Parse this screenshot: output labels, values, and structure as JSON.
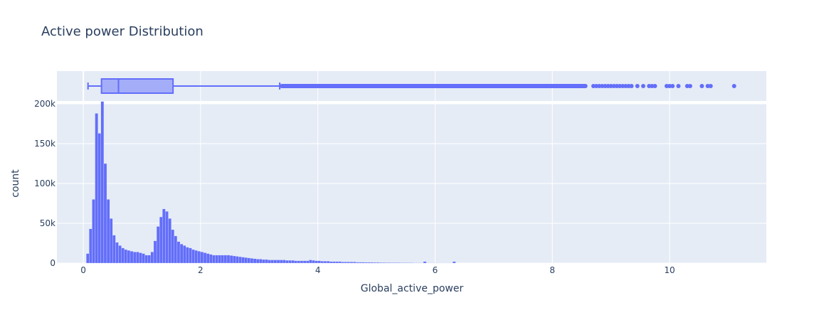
{
  "chart_data": {
    "type": "bar",
    "title": "Active power Distribution",
    "xlabel": "Global_active_power",
    "ylabel": "count",
    "xlim": [
      -0.45,
      11.65
    ],
    "ylim": [
      0,
      200000
    ],
    "x_ticks": [
      0,
      2,
      4,
      6,
      8,
      10
    ],
    "x_tick_labels": [
      "0",
      "2",
      "4",
      "6",
      "8",
      "10"
    ],
    "y_ticks": [
      0,
      50000,
      100000,
      150000,
      200000
    ],
    "y_tick_labels": [
      "0",
      "50k",
      "100k",
      "150k",
      "200k"
    ],
    "grid": true,
    "colors": {
      "bar": "#636efa",
      "plot_bg": "#e5ecf6",
      "text": "#2a3f5f"
    },
    "histogram": {
      "bin_width": 0.05,
      "bin_start": 0.05,
      "counts": [
        12000,
        43000,
        80000,
        188000,
        163000,
        203000,
        125000,
        80000,
        56000,
        35000,
        26000,
        22000,
        19000,
        17000,
        16000,
        15000,
        14000,
        14000,
        13000,
        12000,
        10000,
        10000,
        14000,
        28000,
        46000,
        58000,
        68000,
        65000,
        56000,
        42000,
        34000,
        27000,
        24000,
        22000,
        20000,
        19000,
        17000,
        16000,
        15000,
        14000,
        13000,
        12000,
        11000,
        10000,
        10000,
        10000,
        10000,
        10000,
        10000,
        9500,
        9000,
        8500,
        8000,
        7500,
        7000,
        6500,
        6000,
        5500,
        5000,
        5000,
        4500,
        4500,
        4000,
        4000,
        4000,
        4000,
        4000,
        4000,
        3500,
        3500,
        3500,
        3000,
        3000,
        3000,
        3000,
        3000,
        4000,
        3500,
        3000,
        3000,
        2500,
        2500,
        2500,
        2000,
        2000,
        2000,
        2000,
        1500,
        1500,
        1500,
        1500,
        1500,
        1200,
        1200,
        1200,
        1000,
        1000,
        1000,
        900,
        900,
        800,
        800,
        700,
        700,
        600,
        600,
        600,
        500,
        500,
        500,
        500,
        450,
        400,
        400,
        350,
        2000,
        300,
        300,
        300,
        250,
        250,
        250,
        200,
        200,
        200,
        2000
      ]
    },
    "box": {
      "min": 0.08,
      "q1": 0.31,
      "median": 0.6,
      "q3": 1.53,
      "upper_fence": 3.35,
      "outliers_dense_to": 8.6,
      "outliers": [
        8.7,
        8.75,
        8.8,
        8.85,
        8.9,
        8.95,
        9.0,
        9.05,
        9.1,
        9.15,
        9.2,
        9.25,
        9.3,
        9.35,
        9.45,
        9.55,
        9.65,
        9.7,
        9.75,
        9.95,
        10.0,
        10.05,
        10.15,
        10.3,
        10.35,
        10.55,
        10.65,
        10.7,
        11.1
      ]
    }
  }
}
